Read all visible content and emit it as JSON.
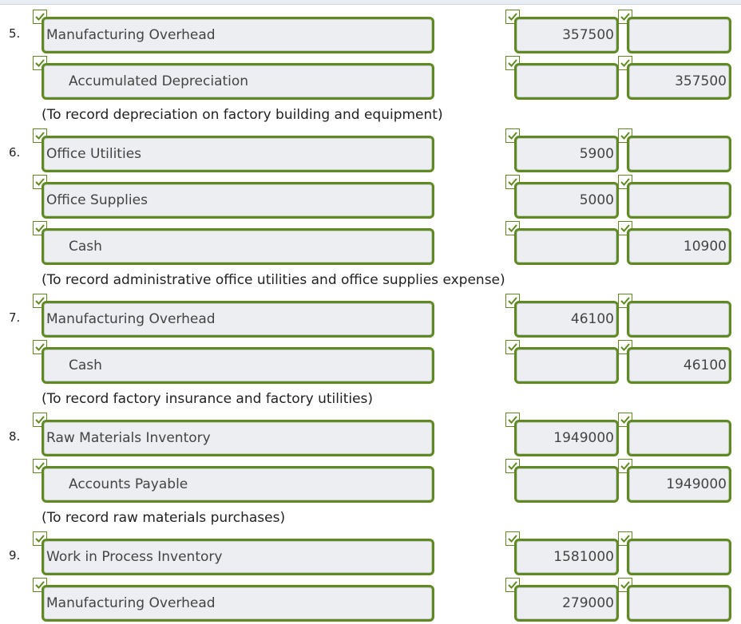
{
  "entries": [
    {
      "number": "5.",
      "lines": [
        {
          "account": "Manufacturing Overhead",
          "indent": false,
          "debit": "357500",
          "credit": ""
        },
        {
          "account": "Accumulated Depreciation",
          "indent": true,
          "debit": "",
          "credit": "357500"
        }
      ],
      "note": "(To record depreciation on factory building and equipment)"
    },
    {
      "number": "6.",
      "lines": [
        {
          "account": "Office Utilities",
          "indent": false,
          "debit": "5900",
          "credit": ""
        },
        {
          "account": "Office Supplies",
          "indent": false,
          "debit": "5000",
          "credit": ""
        },
        {
          "account": "Cash",
          "indent": true,
          "debit": "",
          "credit": "10900"
        }
      ],
      "note": "(To record administrative office utilities and office supplies expense)"
    },
    {
      "number": "7.",
      "lines": [
        {
          "account": "Manufacturing Overhead",
          "indent": false,
          "debit": "46100",
          "credit": ""
        },
        {
          "account": "Cash",
          "indent": true,
          "debit": "",
          "credit": "46100"
        }
      ],
      "note": "(To record factory insurance and factory utilities)"
    },
    {
      "number": "8.",
      "lines": [
        {
          "account": "Raw Materials Inventory",
          "indent": false,
          "debit": "1949000",
          "credit": ""
        },
        {
          "account": "Accounts Payable",
          "indent": true,
          "debit": "",
          "credit": "1949000"
        }
      ],
      "note": "(To record raw materials purchases)"
    },
    {
      "number": "9.",
      "lines": [
        {
          "account": "Work in Process Inventory",
          "indent": false,
          "debit": "1581000",
          "credit": ""
        },
        {
          "account": "Manufacturing Overhead",
          "indent": false,
          "debit": "279000",
          "credit": ""
        }
      ],
      "note": ""
    }
  ],
  "icons": {
    "check": "check-icon"
  },
  "colors": {
    "field_border": "#5f8a1f",
    "field_bg": "#eceef1",
    "check_border": "#5f8a1f"
  }
}
